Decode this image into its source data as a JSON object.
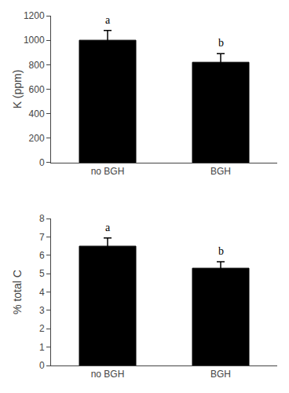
{
  "chart_data": [
    {
      "type": "bar",
      "ylabel": "K (ppm)",
      "categories": [
        "no BGH",
        "BGH"
      ],
      "values": [
        1000,
        820
      ],
      "errors": [
        80,
        70
      ],
      "annotations": [
        {
          "category": "no BGH",
          "text": "a"
        },
        {
          "category": "BGH",
          "text": "b"
        }
      ],
      "color": "#000000",
      "ylim": [
        0,
        1200
      ],
      "yticks": [
        0,
        200,
        400,
        600,
        800,
        1000,
        1200
      ],
      "grid": false
    },
    {
      "type": "bar",
      "ylabel": "% total C",
      "categories": [
        "no BGH",
        "BGH"
      ],
      "values": [
        6.5,
        5.3
      ],
      "errors": [
        0.45,
        0.35
      ],
      "annotations": [
        {
          "category": "no BGH",
          "text": "a"
        },
        {
          "category": "BGH",
          "text": "b"
        }
      ],
      "color": "#000000",
      "ylim": [
        0,
        8
      ],
      "yticks": [
        0,
        1,
        2,
        3,
        4,
        5,
        6,
        7,
        8
      ],
      "grid": false
    }
  ]
}
